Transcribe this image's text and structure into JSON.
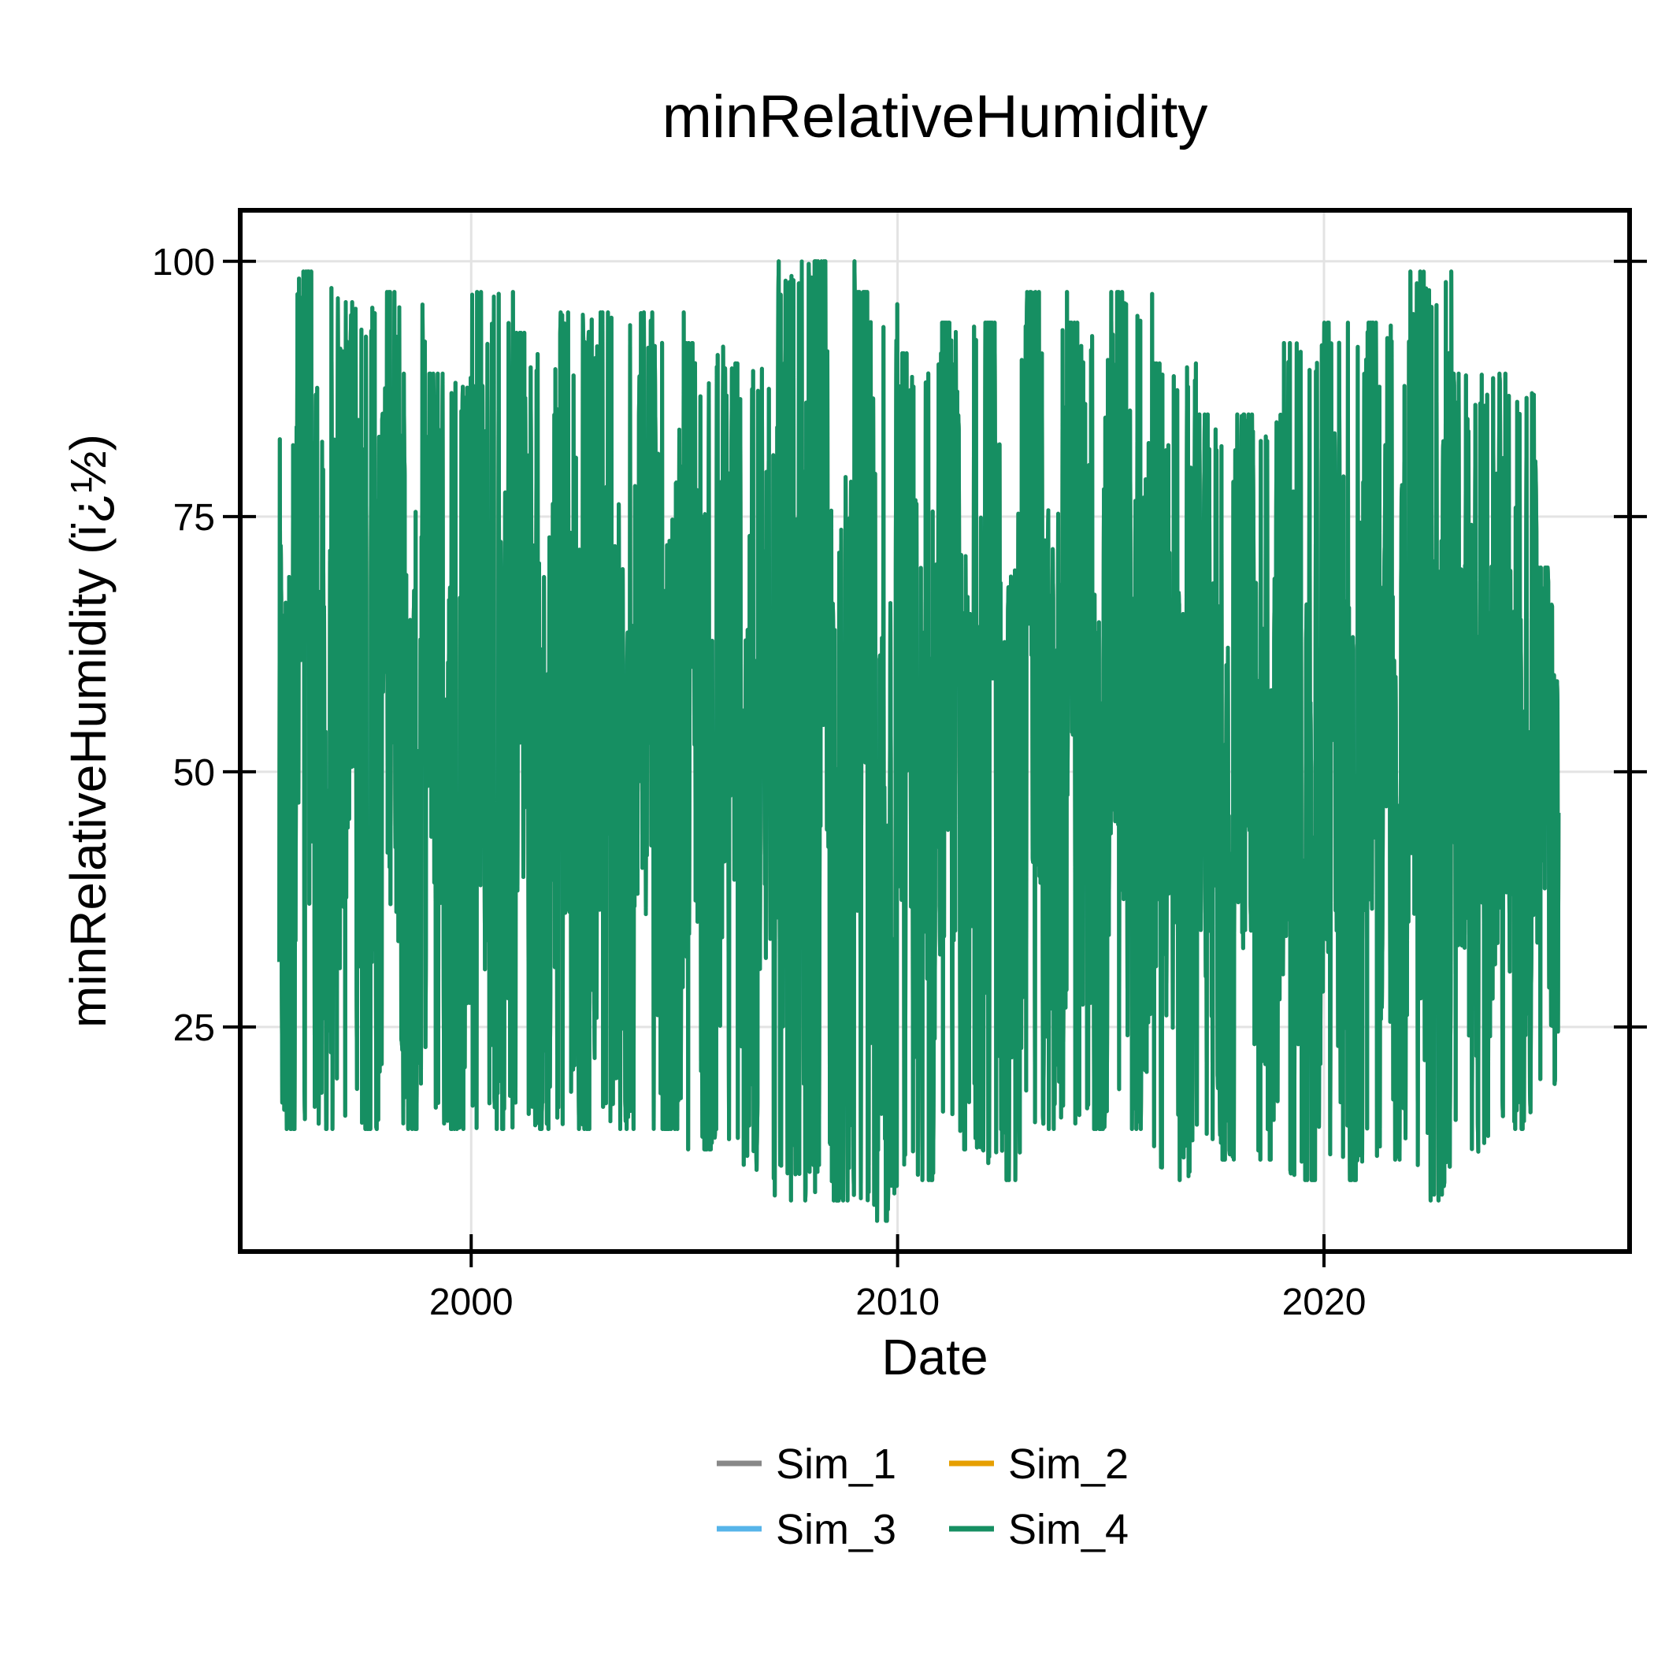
{
  "chart_data": {
    "type": "line",
    "title": "minRelativeHumidity",
    "xlabel": "Date",
    "ylabel": "minRelativeHumidity (ï¿½)",
    "x_tick_labels": [
      "2000",
      "2010",
      "2020"
    ],
    "y_tick_labels": [
      "25",
      "50",
      "75",
      "100"
    ],
    "xlim": [
      "1994-08-01",
      "2027-03-01"
    ],
    "ylim": [
      3,
      105
    ],
    "x_range": [
      "1995-07-01",
      "2025-07-01"
    ],
    "grid": true,
    "legend_position": "bottom",
    "legend_layout": "two-column",
    "series": [
      {
        "name": "Sim_1",
        "color": "#888888"
      },
      {
        "name": "Sim_2",
        "color": "#E69F00"
      },
      {
        "name": "Sim_3",
        "color": "#56B4E9"
      },
      {
        "name": "Sim_4",
        "color": "#168F62"
      }
    ],
    "series_envelope": {
      "note_series": "Sim_4",
      "years": [
        "1996",
        "1997",
        "1998",
        "1999",
        "2000",
        "2001",
        "2002",
        "2003",
        "2004",
        "2005",
        "2006",
        "2007",
        "2008",
        "2009",
        "2010",
        "2011",
        "2012",
        "2013",
        "2014",
        "2015",
        "2016",
        "2017",
        "2018",
        "2019",
        "2020",
        "2021",
        "2022",
        "2023",
        "2024",
        "2025"
      ],
      "annual_max": [
        99,
        96,
        97,
        89,
        97,
        93,
        95,
        95,
        95,
        92,
        90,
        100,
        100,
        97,
        91,
        94,
        94,
        97,
        94,
        97,
        90,
        85,
        85,
        92,
        94,
        94,
        99,
        89,
        89,
        70
      ],
      "annual_min": [
        15,
        15,
        15,
        15,
        15,
        15,
        15,
        15,
        15,
        13,
        11,
        8,
        8,
        6,
        10,
        13,
        10,
        15,
        15,
        15,
        10,
        12,
        12,
        10,
        10,
        12,
        8,
        12,
        15,
        16
      ]
    }
  }
}
